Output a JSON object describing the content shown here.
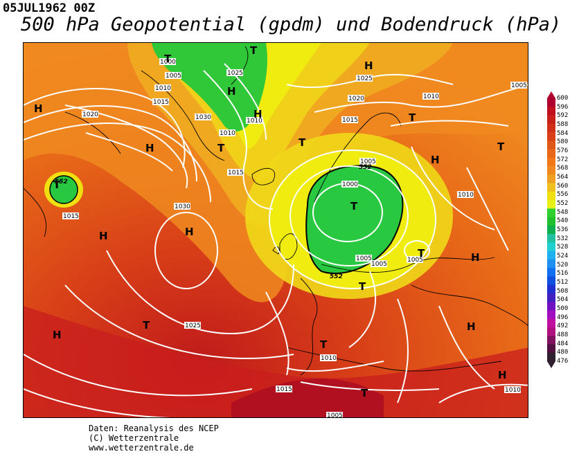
{
  "header": {
    "date": "05JUL1962 00Z",
    "title": "500 hPa Geopotential (gpdm) und Bodendruck (hPa)"
  },
  "credits": {
    "line1": "Daten: Reanalysis des NCEP",
    "line2": "(C) Wetterzentrale",
    "line3": "www.wetterzentrale.de"
  },
  "legend": {
    "ticks": [
      "600",
      "596",
      "592",
      "588",
      "584",
      "580",
      "576",
      "572",
      "568",
      "564",
      "560",
      "556",
      "552",
      "548",
      "540",
      "536",
      "532",
      "528",
      "524",
      "520",
      "516",
      "512",
      "508",
      "504",
      "500",
      "496",
      "492",
      "488",
      "484",
      "480",
      "476"
    ],
    "colors": [
      "#b00030",
      "#c01020",
      "#c82018",
      "#d03018",
      "#d84018",
      "#e05818",
      "#e86818",
      "#f07818",
      "#f08820",
      "#f0a020",
      "#f0c020",
      "#f0e010",
      "#e8f018",
      "#30d030",
      "#20c030",
      "#10b050",
      "#20c0a0",
      "#20d0d0",
      "#20b0f0",
      "#2090f0",
      "#1070f0",
      "#1050e0",
      "#2030d0",
      "#4020c0",
      "#7010c0",
      "#a010c0",
      "#c010a0",
      "#b01080",
      "#801060",
      "#501040",
      "#302030"
    ]
  },
  "pressure_labels": [
    {
      "text": "1000",
      "pos": "greenland"
    },
    {
      "text": "1005",
      "pos": "greenland"
    },
    {
      "text": "1010",
      "pos": "greenland"
    },
    {
      "text": "1015",
      "pos": "greenland"
    },
    {
      "text": "1020",
      "pos": "labrador"
    },
    {
      "text": "1030",
      "pos": "greenland-south"
    },
    {
      "text": "1025",
      "pos": "arctic"
    },
    {
      "text": "1010",
      "pos": "iceland"
    },
    {
      "text": "1010",
      "pos": "iceland-east"
    },
    {
      "text": "1015",
      "pos": "iceland-south"
    },
    {
      "text": "1020",
      "pos": "norway-sea"
    },
    {
      "text": "1025",
      "pos": "barents"
    },
    {
      "text": "1015",
      "pos": "scandinavia"
    },
    {
      "text": "1010",
      "pos": "siberia"
    },
    {
      "text": "1005",
      "pos": "siberia-east"
    },
    {
      "text": "1005",
      "pos": "baltic"
    },
    {
      "text": "1000",
      "pos": "baltic-low"
    },
    {
      "text": "1005",
      "pos": "germany"
    },
    {
      "text": "1005",
      "pos": "poland"
    },
    {
      "text": "1005",
      "pos": "ukraine"
    },
    {
      "text": "1010",
      "pos": "russia"
    },
    {
      "text": "1030",
      "pos": "atlantic-high"
    },
    {
      "text": "1015",
      "pos": "newfoundland"
    },
    {
      "text": "1025",
      "pos": "azores"
    },
    {
      "text": "1010",
      "pos": "iberia"
    },
    {
      "text": "1015",
      "pos": "north-africa"
    },
    {
      "text": "1005",
      "pos": "sahara"
    },
    {
      "text": "1010",
      "pos": "middle-east"
    }
  ],
  "geopotential_labels": [
    {
      "text": "552",
      "pos": "labrador"
    },
    {
      "text": "552",
      "pos": "scandinavia"
    },
    {
      "text": "552",
      "pos": "north-sea"
    }
  ],
  "pressure_centers": [
    {
      "label": "H",
      "type": "high"
    },
    {
      "label": "T",
      "type": "low"
    }
  ],
  "colors": {
    "contour": "#ffffff",
    "coast": "#000000"
  }
}
